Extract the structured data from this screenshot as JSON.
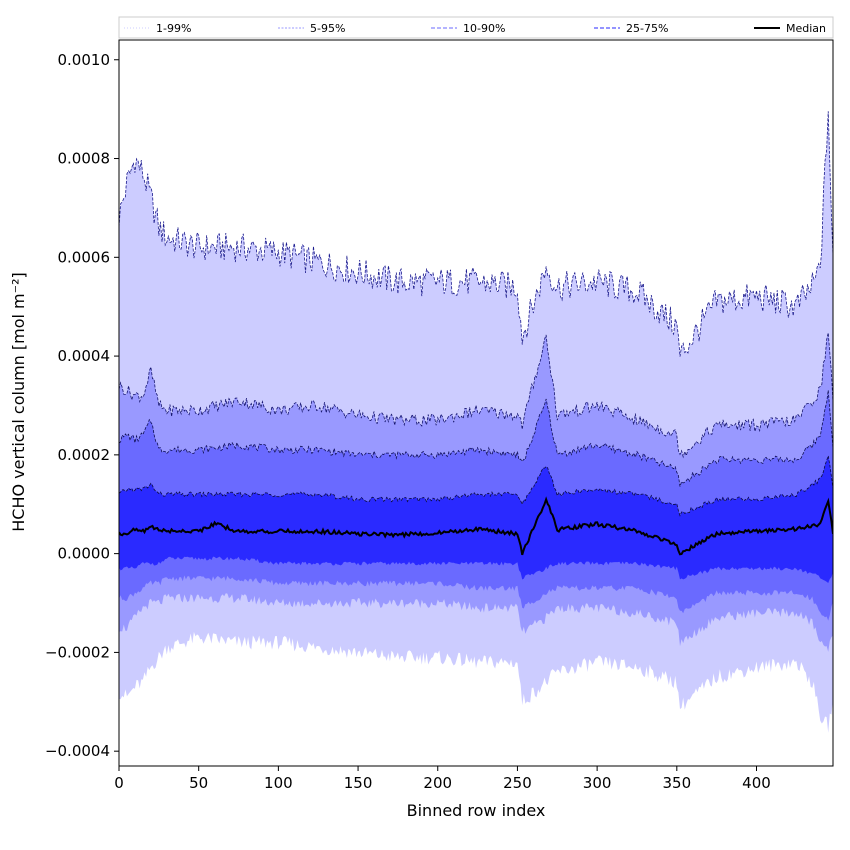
{
  "chart_data": {
    "type": "area",
    "title": "",
    "xlabel": "Binned row index",
    "ylabel": "HCHO vertical column [mol m⁻²]",
    "xlim": [
      0,
      448
    ],
    "ylim": [
      -0.00043,
      0.00104
    ],
    "x_ticks": [
      0,
      50,
      100,
      150,
      200,
      250,
      300,
      350,
      400
    ],
    "x_tick_labels": [
      "0",
      "50",
      "100",
      "150",
      "200",
      "250",
      "300",
      "350",
      "400"
    ],
    "y_ticks": [
      -0.0004,
      -0.0002,
      0.0,
      0.0002,
      0.0004,
      0.0006,
      0.0008,
      0.001
    ],
    "y_tick_labels": [
      "−0.0004",
      "−0.0002",
      "0.0000",
      "0.0002",
      "0.0004",
      "0.0006",
      "0.0008",
      "0.0010"
    ],
    "legend_position": "top, outside plot (single row)",
    "legend": [
      {
        "label": "1-99%",
        "style": "dotted",
        "color": "#ccccff"
      },
      {
        "label": "5-95%",
        "style": "dashed-thin",
        "color": "#9999ff"
      },
      {
        "label": "10-90%",
        "style": "dashed",
        "color": "#6a6aff"
      },
      {
        "label": "25-75%",
        "style": "dashed",
        "color": "#2a2aff"
      },
      {
        "label": "Median",
        "style": "solid",
        "color": "#000000"
      }
    ],
    "bands": [
      {
        "name": "1-99%",
        "fill": "#ccccff",
        "edge": "#1a1a8c",
        "x": [
          0,
          5,
          10,
          15,
          20,
          25,
          30,
          50,
          75,
          100,
          125,
          150,
          175,
          200,
          225,
          250,
          253,
          268,
          275,
          300,
          325,
          350,
          352,
          375,
          400,
          425,
          435,
          440,
          445,
          448
        ],
        "upper": [
          0.00068,
          0.00075,
          0.0008,
          0.00077,
          0.00072,
          0.00066,
          0.00064,
          0.00062,
          0.00062,
          0.00061,
          0.00059,
          0.00057,
          0.00055,
          0.00055,
          0.00055,
          0.00054,
          0.00044,
          0.00058,
          0.00054,
          0.00055,
          0.00053,
          0.00046,
          0.0004,
          0.00051,
          0.00052,
          0.0005,
          0.00054,
          0.00058,
          0.0009,
          0.00058
        ],
        "lower": [
          -0.00028,
          -0.00029,
          -0.00027,
          -0.00026,
          -0.00023,
          -0.00021,
          -0.00019,
          -0.00017,
          -0.00018,
          -0.00018,
          -0.00019,
          -0.0002,
          -0.00021,
          -0.00021,
          -0.00022,
          -0.00022,
          -0.0003,
          -0.00026,
          -0.00024,
          -0.00022,
          -0.00023,
          -0.00026,
          -0.00031,
          -0.00025,
          -0.00023,
          -0.00022,
          -0.00026,
          -0.00033,
          -0.00035,
          -0.0003
        ]
      },
      {
        "name": "5-95%",
        "fill": "#9999ff",
        "edge": "#14146e",
        "x": [
          0,
          5,
          10,
          15,
          20,
          25,
          30,
          50,
          75,
          100,
          125,
          150,
          175,
          200,
          225,
          250,
          253,
          268,
          275,
          300,
          325,
          350,
          352,
          375,
          400,
          425,
          435,
          440,
          445,
          448
        ],
        "upper": [
          0.00034,
          0.00033,
          0.00032,
          0.00032,
          0.00037,
          0.0003,
          0.00029,
          0.00029,
          0.00031,
          0.00029,
          0.0003,
          0.00028,
          0.00027,
          0.00027,
          0.00029,
          0.00028,
          0.00026,
          0.00044,
          0.00028,
          0.0003,
          0.00027,
          0.00024,
          0.0002,
          0.00026,
          0.00026,
          0.00027,
          0.00031,
          0.00033,
          0.00045,
          0.00031
        ],
        "lower": [
          -0.00015,
          -0.00015,
          -0.00013,
          -0.00011,
          -0.0001,
          -0.0001,
          -9e-05,
          -9e-05,
          -9e-05,
          -0.0001,
          -0.0001,
          -0.0001,
          -0.0001,
          -0.0001,
          -0.00011,
          -0.00011,
          -0.00016,
          -0.00013,
          -0.00011,
          -0.00011,
          -0.00012,
          -0.00014,
          -0.00018,
          -0.00013,
          -0.00012,
          -0.00012,
          -0.00014,
          -0.00018,
          -0.00019,
          -0.00016
        ]
      },
      {
        "name": "10-90%",
        "fill": "#6a6aff",
        "edge": "#0e0e55",
        "x": [
          0,
          5,
          10,
          15,
          20,
          25,
          30,
          50,
          75,
          100,
          125,
          150,
          175,
          200,
          225,
          250,
          253,
          268,
          275,
          300,
          325,
          350,
          352,
          375,
          400,
          425,
          435,
          440,
          445,
          448
        ],
        "upper": [
          0.00023,
          0.00024,
          0.00023,
          0.00024,
          0.00027,
          0.00021,
          0.00021,
          0.00021,
          0.00022,
          0.00021,
          0.00021,
          0.0002,
          0.0002,
          0.0002,
          0.00021,
          0.0002,
          0.00018,
          0.00031,
          0.0002,
          0.00022,
          0.0002,
          0.00017,
          0.00014,
          0.00019,
          0.00019,
          0.00019,
          0.00022,
          0.00024,
          0.00033,
          0.00022
        ],
        "lower": [
          -9e-05,
          -9e-05,
          -8e-05,
          -7e-05,
          -6e-05,
          -6e-05,
          -5e-05,
          -5e-05,
          -5e-05,
          -6e-05,
          -6e-05,
          -6e-05,
          -6e-05,
          -6e-05,
          -7e-05,
          -7e-05,
          -0.00011,
          -8e-05,
          -7e-05,
          -7e-05,
          -7e-05,
          -9e-05,
          -0.00012,
          -8e-05,
          -8e-05,
          -8e-05,
          -9e-05,
          -0.00012,
          -0.00013,
          -0.0001
        ]
      },
      {
        "name": "25-75%",
        "fill": "#2a2aff",
        "edge": "#0a0a40",
        "x": [
          0,
          5,
          10,
          15,
          20,
          25,
          30,
          50,
          75,
          100,
          125,
          150,
          175,
          200,
          225,
          250,
          253,
          268,
          275,
          300,
          325,
          350,
          352,
          375,
          400,
          425,
          435,
          440,
          445,
          448
        ],
        "upper": [
          0.00012,
          0.00013,
          0.00013,
          0.00013,
          0.00014,
          0.00012,
          0.00012,
          0.00012,
          0.00012,
          0.00012,
          0.00012,
          0.00011,
          0.00011,
          0.00011,
          0.00012,
          0.00012,
          0.0001,
          0.00018,
          0.00012,
          0.00013,
          0.00012,
          0.0001,
          8e-05,
          0.00011,
          0.00011,
          0.00012,
          0.00014,
          0.00015,
          0.0002,
          0.00013
        ],
        "lower": [
          -3e-05,
          -3e-05,
          -3e-05,
          -2e-05,
          -2e-05,
          -2e-05,
          -1e-05,
          -1e-05,
          -1e-05,
          -2e-05,
          -2e-05,
          -2e-05,
          -2e-05,
          -2e-05,
          -2e-05,
          -2e-05,
          -5e-05,
          -3e-05,
          -2e-05,
          -2e-05,
          -2e-05,
          -3e-05,
          -5e-05,
          -3e-05,
          -3e-05,
          -3e-05,
          -4e-05,
          -5e-05,
          -6e-05,
          -4e-05
        ]
      }
    ],
    "median": {
      "name": "Median",
      "color": "#000000",
      "x": [
        0,
        5,
        10,
        15,
        20,
        25,
        30,
        50,
        60,
        75,
        100,
        125,
        150,
        175,
        200,
        225,
        250,
        253,
        268,
        275,
        300,
        325,
        350,
        352,
        375,
        400,
        425,
        435,
        440,
        445,
        448
      ],
      "values": [
        4e-05,
        4.2e-05,
        4.8e-05,
        4.5e-05,
        5.5e-05,
        4.8e-05,
        4.6e-05,
        4.6e-05,
        6e-05,
        4.5e-05,
        4.5e-05,
        4.5e-05,
        4e-05,
        3.8e-05,
        4.2e-05,
        5e-05,
        4e-05,
        0.0,
        0.00011,
        4.8e-05,
        6e-05,
        4.5e-05,
        2e-05,
        0.0,
        4e-05,
        4.5e-05,
        5e-05,
        5.5e-05,
        6e-05,
        0.00011,
        4e-05
      ]
    }
  }
}
